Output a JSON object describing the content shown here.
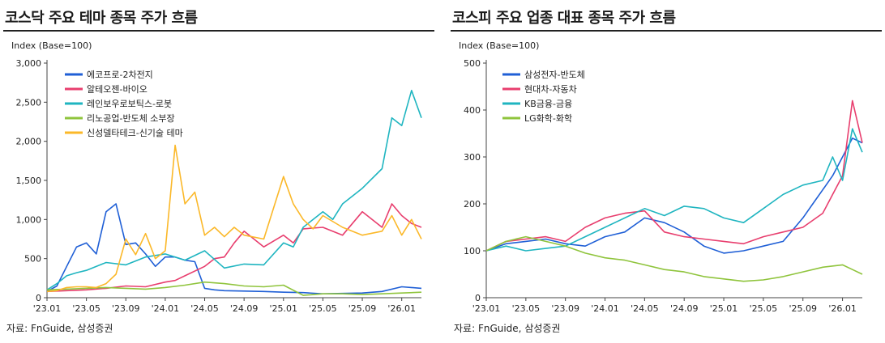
{
  "charts": [
    {
      "title": "코스닥 주요 테마 종목 주가 흐름",
      "unit_label": "Index (Base=100)",
      "source": "자료: FnGuide, 삼성증권",
      "chart_data": {
        "type": "line",
        "x_tick_labels": [
          "'23.01",
          "'23.05",
          "'23.09",
          "'24.01",
          "'24.05",
          "'24.09",
          "'25.01",
          "'25.05",
          "'25.09",
          "'26.01"
        ],
        "x_range": [
          "2023-01",
          "2026-03"
        ],
        "y_ticks": [
          0,
          500,
          1000,
          1500,
          2000,
          2500,
          3000
        ],
        "y_tick_labels": [
          "0",
          "500",
          "1,000",
          "1,500",
          "2,000",
          "2,500",
          "3,000"
        ],
        "ylim": [
          0,
          3000
        ],
        "legend_position": "top-left",
        "series": [
          {
            "name": "에코프로-2차전지",
            "color": "#1f5fd6",
            "x": [
              0,
              1,
              2,
              3,
              4,
              5,
              6,
              7,
              8,
              9,
              10,
              11,
              12,
              13,
              14,
              15,
              16,
              17,
              18,
              20,
              22,
              24,
              26,
              28,
              30,
              32,
              34,
              36,
              38
            ],
            "values": [
              80,
              150,
              400,
              650,
              700,
              560,
              1100,
              1200,
              680,
              700,
              560,
              400,
              520,
              520,
              480,
              460,
              120,
              100,
              90,
              85,
              80,
              70,
              65,
              50,
              55,
              60,
              80,
              140,
              120
            ]
          },
          {
            "name": "알테오젠-바이오",
            "color": "#e83e6e",
            "x": [
              0,
              2,
              4,
              6,
              8,
              10,
              12,
              13,
              14,
              16,
              17,
              18,
              19,
              20,
              22,
              24,
              25,
              26,
              28,
              30,
              32,
              34,
              35,
              36,
              37,
              38
            ],
            "values": [
              80,
              90,
              100,
              120,
              150,
              140,
              200,
              220,
              280,
              400,
              500,
              520,
              700,
              850,
              650,
              800,
              700,
              880,
              900,
              800,
              1100,
              900,
              1200,
              1050,
              950,
              900
            ]
          },
          {
            "name": "레인보우로보틱스-로봇",
            "color": "#1fb5c0",
            "x": [
              0,
              1,
              2,
              3,
              4,
              6,
              8,
              10,
              12,
              14,
              16,
              18,
              20,
              22,
              24,
              25,
              26,
              28,
              29,
              30,
              32,
              34,
              35,
              36,
              37,
              38
            ],
            "values": [
              100,
              180,
              280,
              320,
              350,
              450,
              420,
              520,
              560,
              480,
              600,
              380,
              430,
              420,
              700,
              650,
              900,
              1100,
              1000,
              1200,
              1400,
              1650,
              2300,
              2200,
              2650,
              2300
            ]
          },
          {
            "name": "리노공업-반도체 소부장",
            "color": "#8fc43c",
            "x": [
              0,
              2,
              4,
              6,
              8,
              10,
              12,
              14,
              16,
              18,
              20,
              22,
              24,
              26,
              28,
              30,
              32,
              34,
              36,
              38
            ],
            "values": [
              100,
              110,
              120,
              130,
              120,
              110,
              130,
              160,
              200,
              180,
              150,
              140,
              160,
              30,
              50,
              50,
              40,
              50,
              60,
              70
            ]
          },
          {
            "name": "신성델타테크-신기술 테마",
            "color": "#fbb829",
            "x": [
              0,
              1,
              2,
              3,
              4,
              5,
              6,
              7,
              8,
              9,
              10,
              11,
              12,
              13,
              14,
              15,
              16,
              17,
              18,
              19,
              20,
              22,
              24,
              25,
              26,
              27,
              28,
              30,
              32,
              34,
              35,
              36,
              37,
              38
            ],
            "values": [
              80,
              90,
              130,
              140,
              140,
              130,
              180,
              300,
              750,
              550,
              820,
              500,
              600,
              1950,
              1200,
              1350,
              800,
              900,
              780,
              900,
              800,
              750,
              1550,
              1200,
              1000,
              880,
              1050,
              900,
              800,
              850,
              1050,
              800,
              1000,
              750
            ]
          }
        ]
      }
    },
    {
      "title": "코스피 주요 업종 대표 종목 주가 흐름",
      "unit_label": "Index (Base=100)",
      "source": "자료: FnGuide, 삼성증권",
      "chart_data": {
        "type": "line",
        "x_tick_labels": [
          "'23.01",
          "'23.05",
          "'23.09",
          "'24.01",
          "'24.05",
          "'24.09",
          "'25.01",
          "'25.05",
          "'25.09",
          "'26.01"
        ],
        "x_range": [
          "2023-01",
          "2026-03"
        ],
        "y_ticks": [
          0,
          100,
          200,
          300,
          400,
          500
        ],
        "y_tick_labels": [
          "0",
          "100",
          "200",
          "300",
          "400",
          "500"
        ],
        "ylim": [
          0,
          500
        ],
        "legend_position": "top-left",
        "series": [
          {
            "name": "삼성전자-반도체",
            "color": "#1f5fd6",
            "x": [
              0,
              2,
              4,
              6,
              8,
              10,
              12,
              14,
              16,
              18,
              20,
              22,
              24,
              26,
              28,
              30,
              32,
              33,
              34,
              35,
              36,
              37,
              38
            ],
            "values": [
              100,
              115,
              120,
              125,
              115,
              110,
              130,
              140,
              170,
              160,
              140,
              110,
              95,
              100,
              110,
              120,
              170,
              200,
              230,
              260,
              300,
              340,
              330
            ]
          },
          {
            "name": "현대차-자동차",
            "color": "#e83e6e",
            "x": [
              0,
              2,
              4,
              6,
              8,
              10,
              12,
              14,
              16,
              18,
              20,
              22,
              24,
              26,
              28,
              30,
              32,
              34,
              35,
              36,
              37,
              38
            ],
            "values": [
              100,
              120,
              125,
              130,
              120,
              150,
              170,
              180,
              185,
              140,
              130,
              125,
              120,
              115,
              130,
              140,
              150,
              180,
              220,
              260,
              420,
              330
            ]
          },
          {
            "name": "KB금융-금융",
            "color": "#1fb5c0",
            "x": [
              0,
              2,
              4,
              6,
              8,
              10,
              12,
              14,
              16,
              18,
              20,
              22,
              24,
              26,
              28,
              30,
              32,
              34,
              35,
              36,
              37,
              38
            ],
            "values": [
              100,
              110,
              100,
              105,
              110,
              130,
              150,
              170,
              190,
              175,
              195,
              190,
              170,
              160,
              190,
              220,
              240,
              250,
              300,
              250,
              360,
              310
            ]
          },
          {
            "name": "LG화학-화학",
            "color": "#8fc43c",
            "x": [
              0,
              2,
              4,
              6,
              8,
              10,
              12,
              14,
              16,
              18,
              20,
              22,
              24,
              26,
              28,
              30,
              32,
              34,
              36,
              37,
              38
            ],
            "values": [
              100,
              120,
              130,
              120,
              110,
              95,
              85,
              80,
              70,
              60,
              55,
              45,
              40,
              35,
              38,
              45,
              55,
              65,
              70,
              60,
              50
            ]
          }
        ]
      }
    }
  ]
}
